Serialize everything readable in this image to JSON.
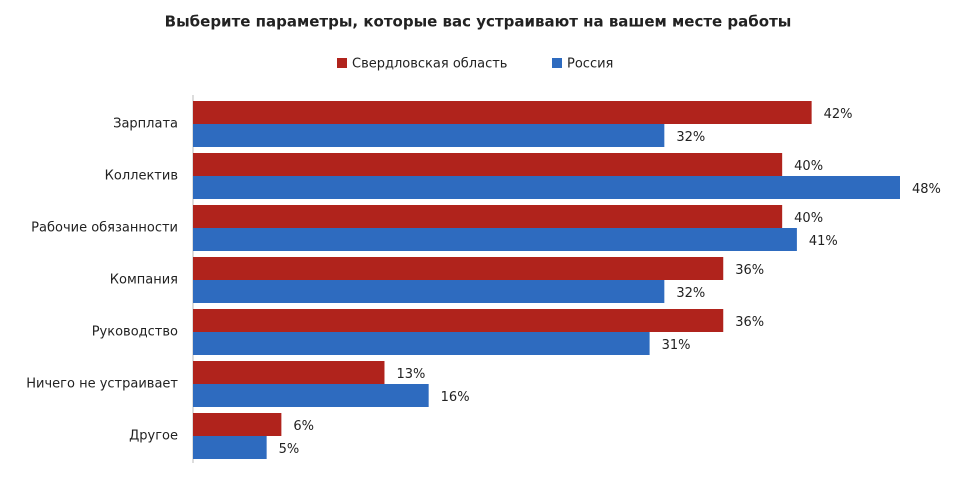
{
  "chart_data": {
    "type": "bar",
    "orientation": "horizontal",
    "title": "Выберите параметры, которые вас устраивают на вашем месте работы",
    "categories": [
      "Зарплата",
      "Коллектив",
      "Рабочие обязанности",
      "Компания",
      "Руководство",
      "Ничего не устраивает",
      "Другое"
    ],
    "series": [
      {
        "name": "Свердловская область",
        "color": "#b0231c",
        "values": [
          42,
          40,
          40,
          36,
          36,
          13,
          6
        ],
        "value_labels": [
          "42%",
          "40%",
          "40%",
          "36%",
          "36%",
          "13%",
          "6%"
        ]
      },
      {
        "name": "Россия",
        "color": "#2e6bbf",
        "values": [
          32,
          48,
          41,
          32,
          31,
          16,
          5
        ],
        "value_labels": [
          "32%",
          "48%",
          "41%",
          "32%",
          "31%",
          "16%",
          "5%"
        ]
      }
    ],
    "legend": "top"
  }
}
